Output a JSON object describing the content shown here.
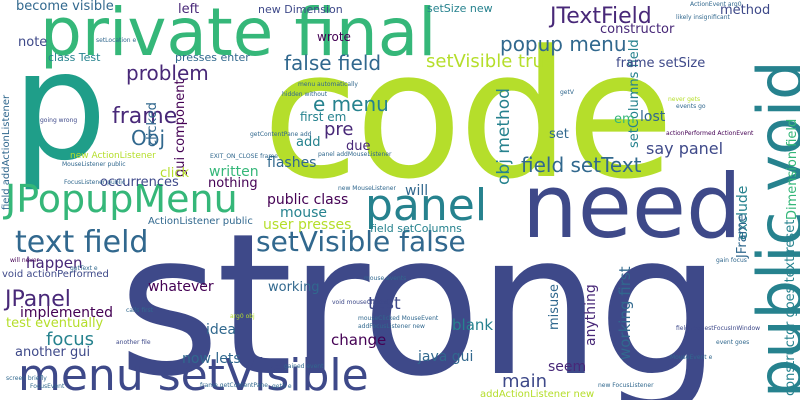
{
  "cloud": {
    "words": [
      {
        "text": "strong",
        "color": "indigo"
      },
      {
        "text": "code",
        "color": "yellow-green"
      },
      {
        "text": "p",
        "color": "teal-green"
      },
      {
        "text": "private final",
        "color": "green"
      },
      {
        "text": "need",
        "color": "dark-blue"
      },
      {
        "text": "public void",
        "color": "teal"
      },
      {
        "text": "menu setVisible",
        "color": "dark-blue"
      },
      {
        "text": "JPopupMenu",
        "color": "green"
      },
      {
        "text": "panel",
        "color": "teal"
      },
      {
        "text": "text field",
        "color": "blue"
      },
      {
        "text": "setVisible false",
        "color": "blue"
      },
      {
        "text": "false field",
        "color": "blue"
      },
      {
        "text": "setVisible true",
        "color": "yellow-green"
      },
      {
        "text": "JTextField",
        "color": "indigo"
      },
      {
        "text": "popup menu",
        "color": "blue"
      },
      {
        "text": "problem",
        "color": "purple"
      },
      {
        "text": "frame",
        "color": "purple"
      },
      {
        "text": "Obj",
        "color": "blue"
      },
      {
        "text": "e menu",
        "color": "teal"
      },
      {
        "text": "pre",
        "color": "purple"
      },
      {
        "text": "first em",
        "color": "teal"
      },
      {
        "text": "obj method",
        "color": "teal"
      },
      {
        "text": "field setText",
        "color": "blue"
      },
      {
        "text": "public class",
        "color": "dark-purple"
      },
      {
        "text": "user presses",
        "color": "yellow-green"
      },
      {
        "text": "mouse",
        "color": "teal"
      },
      {
        "text": "field setColumns",
        "color": "teal"
      },
      {
        "text": "written",
        "color": "green"
      },
      {
        "text": "nothing",
        "color": "dark-purple"
      },
      {
        "text": "flashes",
        "color": "blue"
      },
      {
        "text": "will",
        "color": "blue"
      },
      {
        "text": "say panel",
        "color": "dark-blue"
      },
      {
        "text": "JPanel",
        "color": "purple"
      },
      {
        "text": "happen",
        "color": "purple"
      },
      {
        "text": "implemented",
        "color": "dark-purple"
      },
      {
        "text": "test eventually",
        "color": "yellow-green"
      },
      {
        "text": "focus",
        "color": "teal"
      },
      {
        "text": "another gui",
        "color": "dark-blue"
      },
      {
        "text": "whatever",
        "color": "dark-purple"
      },
      {
        "text": "idea",
        "color": "blue"
      },
      {
        "text": "now lets",
        "color": "blue"
      },
      {
        "text": "java gui",
        "color": "blue"
      },
      {
        "text": "test",
        "color": "indigo"
      },
      {
        "text": "main",
        "color": "indigo"
      },
      {
        "text": "change",
        "color": "dark-purple"
      },
      {
        "text": "blank",
        "color": "teal"
      },
      {
        "text": "working",
        "color": "blue"
      },
      {
        "text": "misuse",
        "color": "blue"
      },
      {
        "text": "seem",
        "color": "purple"
      },
      {
        "text": "anything",
        "color": "purple"
      },
      {
        "text": "working first",
        "color": "blue"
      },
      {
        "text": "exclude",
        "color": "teal"
      },
      {
        "text": "JFrame",
        "color": "blue"
      },
      {
        "text": "Dimension field",
        "color": "green"
      },
      {
        "text": "constructor goes text reset",
        "color": "teal"
      },
      {
        "text": "setColumns field",
        "color": "teal"
      },
      {
        "text": "frame setSize",
        "color": "dark-blue"
      },
      {
        "text": "lost",
        "color": "blue"
      },
      {
        "text": "em",
        "color": "green"
      },
      {
        "text": "set",
        "color": "blue"
      },
      {
        "text": "constructor",
        "color": "purple"
      },
      {
        "text": "method",
        "color": "dark-blue"
      },
      {
        "text": "become visible",
        "color": "blue"
      },
      {
        "text": "left",
        "color": "purple"
      },
      {
        "text": "new Dimension",
        "color": "dark-blue"
      },
      {
        "text": "setSize new",
        "color": "teal"
      },
      {
        "text": "wrote",
        "color": "dark-purple"
      },
      {
        "text": "note",
        "color": "dark-blue"
      },
      {
        "text": "class Test",
        "color": "teal"
      },
      {
        "text": "presses enter",
        "color": "blue"
      },
      {
        "text": "clicked",
        "color": "blue"
      },
      {
        "text": "component",
        "color": "dark-purple"
      },
      {
        "text": "gui",
        "color": "dark-purple"
      },
      {
        "text": "occurrences",
        "color": "dark-blue"
      },
      {
        "text": "click",
        "color": "yellow-green"
      },
      {
        "text": "new ActionListener",
        "color": "yellow-green"
      },
      {
        "text": "field addActionListener",
        "color": "blue"
      },
      {
        "text": "ActionListener public",
        "color": "blue"
      },
      {
        "text": "void actionPerformed",
        "color": "dark-blue"
      },
      {
        "text": "addActionListener new",
        "color": "yellow-green"
      },
      {
        "text": "add",
        "color": "teal"
      },
      {
        "text": "due",
        "color": "purple"
      },
      {
        "text": "ActionEvent arg0",
        "color": "blue"
      },
      {
        "text": "likely insignificant",
        "color": "blue"
      },
      {
        "text": "getV",
        "color": "blue"
      },
      {
        "text": "setLocation e",
        "color": "blue"
      },
      {
        "text": "going wrong",
        "color": "dark-blue"
      },
      {
        "text": "MouseListener public",
        "color": "blue"
      },
      {
        "text": "FocusListener public",
        "color": "blue"
      },
      {
        "text": "EXIT_ON_CLOSE frame",
        "color": "blue"
      },
      {
        "text": "new MouseListener",
        "color": "blue"
      },
      {
        "text": "mouseClicked MouseEvent",
        "color": "blue"
      },
      {
        "text": "addFocusListener new",
        "color": "blue"
      },
      {
        "text": "void mouseClicked",
        "color": "dark-blue"
      },
      {
        "text": "gain focus",
        "color": "blue"
      },
      {
        "text": "field requestFocusInWindow",
        "color": "dark-blue"
      },
      {
        "text": "event goes",
        "color": "blue"
      },
      {
        "text": "frame getContentPane",
        "color": "blue"
      },
      {
        "text": "new FocusListener",
        "color": "blue"
      },
      {
        "text": "another file",
        "color": "dark-blue"
      },
      {
        "text": "getText e",
        "color": "blue"
      },
      {
        "text": "mouse events",
        "color": "blue"
      },
      {
        "text": "arg0 obj",
        "color": "yellow-green"
      },
      {
        "text": "will never",
        "color": "dark-purple"
      },
      {
        "text": "menu automatically",
        "color": "blue"
      },
      {
        "text": "hidden without",
        "color": "blue"
      },
      {
        "text": "actionPerformed ActionEvent",
        "color": "dark-purple"
      },
      {
        "text": "panel addMouseListener",
        "color": "blue"
      },
      {
        "text": "getContentPane add",
        "color": "blue"
      },
      {
        "text": "never gets",
        "color": "yellow-green"
      },
      {
        "text": "events go",
        "color": "blue"
      },
      {
        "text": "MouseEvent e",
        "color": "blue"
      },
      {
        "text": "gained event",
        "color": "blue"
      },
      {
        "text": "calls first",
        "color": "blue"
      },
      {
        "text": "screen briefly",
        "color": "blue"
      },
      {
        "text": "FocusEvent",
        "color": "blue"
      },
      {
        "text": "getX e",
        "color": "blue"
      }
    ]
  }
}
